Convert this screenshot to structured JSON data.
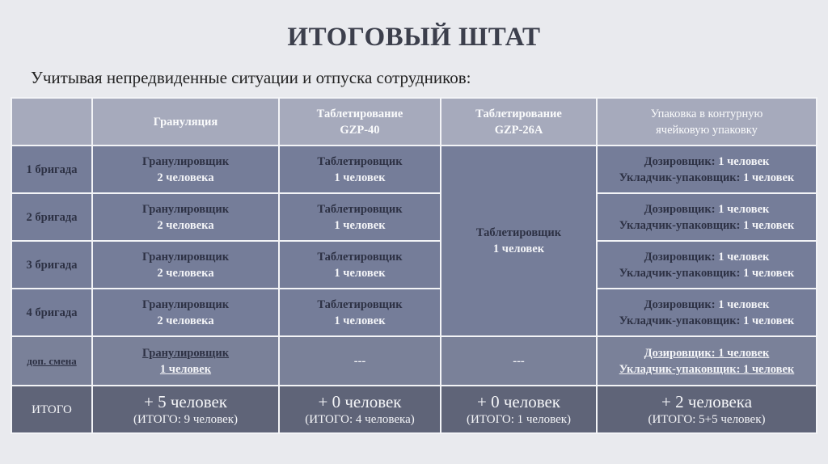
{
  "title": "ИТОГОВЫЙ ШТАТ",
  "subtitle": "Учитывая непредвиденные ситуации и отпуска сотрудников:",
  "headers": [
    "",
    "Грануляция",
    "Таблетирование GZP-40",
    "Таблетирование GZP-26A",
    "Упаковка в контурную ячейковую упаковку"
  ],
  "brigades": [
    {
      "label": "1 бригада",
      "gran_role": "Гранулировщик",
      "gran_count": "2 человека",
      "tab_role": "Таблетировщик",
      "tab_count": "1 человек",
      "dos": "Дозировщик:",
      "dos_count": "1 человек",
      "pack": "Укладчик-упаковщик:",
      "pack_count": "1 человек"
    },
    {
      "label": "2 бригада",
      "gran_role": "Гранулировщик",
      "gran_count": "2 человека",
      "tab_role": "Таблетировщик",
      "tab_count": "1 человек",
      "dos": "Дозировщик:",
      "dos_count": "1 человек",
      "pack": "Укладчик-упаковщик:",
      "pack_count": "1 человек"
    },
    {
      "label": "3 бригада",
      "gran_role": "Гранулировщик",
      "gran_count": "2 человека",
      "tab_role": "Таблетировщик",
      "tab_count": "1 человек",
      "dos": "Дозировщик:",
      "dos_count": "1 человек",
      "pack": "Укладчик-упаковщик:",
      "pack_count": "1 человек"
    },
    {
      "label": "4 бригада",
      "gran_role": "Гранулировщик",
      "gran_count": "2 человека",
      "tab_role": "Таблетировщик",
      "tab_count": "1 человек",
      "dos": "Дозировщик:",
      "dos_count": "1 человек",
      "pack": "Укладчик-упаковщик:",
      "pack_count": "1 человек"
    }
  ],
  "gzp26_merged": {
    "role": "Таблетировщик",
    "count": "1 человек"
  },
  "extra": {
    "label": "доп. смена",
    "gran_role": "Гранулировщик",
    "gran_count": "1 человек",
    "tab": "---",
    "gzp26": "---",
    "dos": "Дозировщик: 1 человек",
    "pack": "Укладчик-упаковщик: 1 человек"
  },
  "total": {
    "label": "ИТОГО",
    "cells": [
      {
        "main": "+ 5 человек",
        "sub": "(ИТОГО: 9 человек)"
      },
      {
        "main": "+ 0 человек",
        "sub": "(ИТОГО: 4 человека)"
      },
      {
        "main": "+ 0 человек",
        "sub": "(ИТОГО: 1 человек)"
      },
      {
        "main": "+ 2 человека",
        "sub": "(ИТОГО: 5+5 человек)"
      }
    ]
  }
}
